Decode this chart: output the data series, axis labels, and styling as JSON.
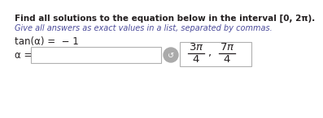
{
  "line1": "Find all solutions to the equation below in the interval [0, 2π).",
  "line2": "Give all answers as exact values in a list, separated by commas.",
  "equation": "tan(α) =  − 1",
  "alpha_label": "α =",
  "bg_color": "#ffffff",
  "text_color": "#231f20",
  "title_color": "#231f20",
  "subtitle_color": "#4a4a9a",
  "font_size_title": 7.5,
  "font_size_italic": 7.0,
  "font_size_eq": 8.5,
  "font_size_answer": 9.5,
  "icon_color": "#888888",
  "box_edge_color": "#b0b0b0"
}
